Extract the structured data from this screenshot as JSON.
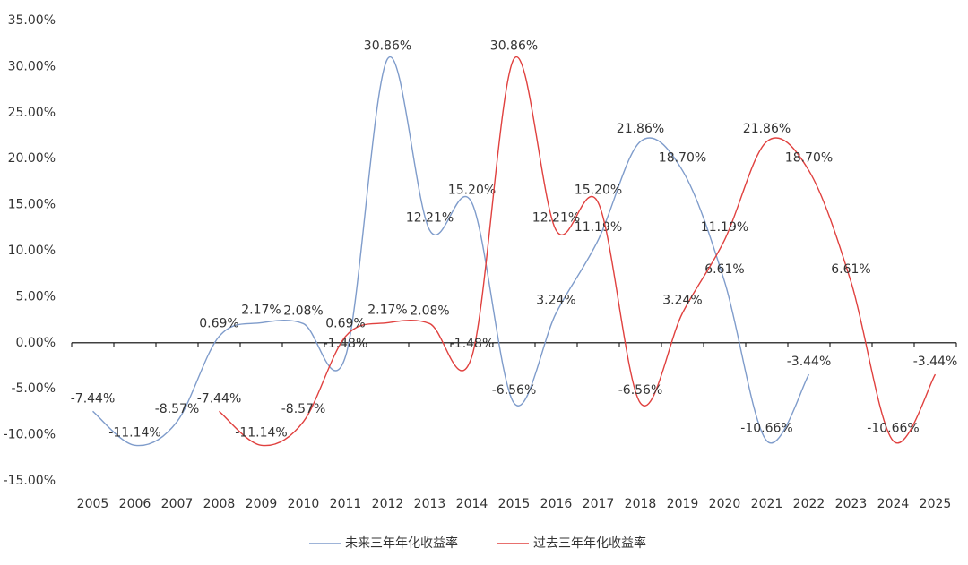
{
  "chart_data": {
    "type": "line",
    "categories": [
      "2005",
      "2006",
      "2007",
      "2008",
      "2009",
      "2010",
      "2011",
      "2012",
      "2013",
      "2014",
      "2015",
      "2016",
      "2017",
      "2018",
      "2019",
      "2020",
      "2021",
      "2022",
      "2023",
      "2024",
      "2025"
    ],
    "series": [
      {
        "name": "未来三年年化收益率",
        "color": "#7f9ccb",
        "values": [
          -7.44,
          -11.14,
          -8.57,
          0.69,
          2.17,
          2.08,
          -1.48,
          30.86,
          12.21,
          15.2,
          -6.56,
          3.24,
          11.19,
          21.86,
          18.7,
          6.61,
          -10.66,
          -3.44,
          null,
          null,
          null
        ],
        "value_labels": [
          "-7.44%",
          "-11.14%",
          "-8.57%",
          "0.69%",
          "2.17%",
          "2.08%",
          "-1.48%",
          "30.86%",
          "12.21%",
          "15.20%",
          "-6.56%",
          "3.24%",
          "11.19%",
          "21.86%",
          "18.70%",
          "6.61%",
          "-10.66%",
          "-3.44%",
          null,
          null,
          null
        ]
      },
      {
        "name": "过去三年年化收益率",
        "color": "#e0413f",
        "values": [
          null,
          null,
          null,
          -7.44,
          -11.14,
          -8.57,
          0.69,
          2.17,
          2.08,
          -1.48,
          30.86,
          12.21,
          15.2,
          -6.56,
          3.24,
          11.19,
          21.86,
          18.7,
          6.61,
          -10.66,
          -3.44
        ],
        "value_labels": [
          null,
          null,
          null,
          "-7.44%",
          "-11.14%",
          "-8.57%",
          "0.69%",
          "2.17%",
          "2.08%",
          "-1.48%",
          "30.86%",
          "12.21%",
          "15.20%",
          "-6.56%",
          "3.24%",
          "11.19%",
          "21.86%",
          "18.70%",
          "6.61%",
          "-10.66%",
          "-3.44%"
        ]
      }
    ],
    "ylim": [
      -15,
      35
    ],
    "yticks": [
      {
        "value": -15,
        "label": "-15.00%"
      },
      {
        "value": -10,
        "label": "-10.00%"
      },
      {
        "value": -5,
        "label": "-5.00%"
      },
      {
        "value": 0,
        "label": "0.00%"
      },
      {
        "value": 5,
        "label": "5.00%"
      },
      {
        "value": 10,
        "label": "10.00%"
      },
      {
        "value": 15,
        "label": "15.00%"
      },
      {
        "value": 20,
        "label": "20.00%"
      },
      {
        "value": 25,
        "label": "25.00%"
      },
      {
        "value": 30,
        "label": "30.00%"
      },
      {
        "value": 35,
        "label": "35.00%"
      }
    ],
    "legend": "bottom",
    "grid": false
  }
}
